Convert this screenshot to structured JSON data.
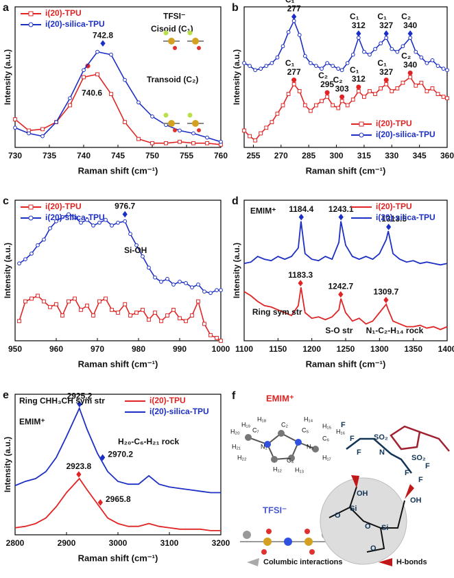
{
  "chart_data": [
    {
      "type": "line",
      "label": "a",
      "xlabel": "Raman shift (cm⁻¹)",
      "ylabel": "Intensity (a.u.)",
      "x": [
        730,
        732,
        734,
        736,
        738,
        740,
        742,
        744,
        746,
        748,
        750,
        752,
        754,
        756,
        758,
        760
      ],
      "xlim": [
        730,
        760
      ],
      "xticks": [
        730,
        735,
        740,
        745,
        750,
        755,
        760
      ],
      "ylim": [
        0,
        1
      ],
      "legend": "upper left",
      "markers": true,
      "series": [
        {
          "name": "i(20)-TPU",
          "color": "#e02424",
          "marker": "square",
          "values": [
            0.2,
            0.12,
            0.13,
            0.18,
            0.3,
            0.5,
            0.52,
            0.38,
            0.18,
            0.06,
            0.03,
            0.03,
            0.04,
            0.03,
            0.03,
            0.02
          ],
          "peaks": [
            {
              "x": 740.6,
              "y": 0.58
            }
          ]
        },
        {
          "name": "i(20)-silica-TPU",
          "color": "#1c2fc4",
          "marker": "circle",
          "values": [
            0.14,
            0.1,
            0.08,
            0.18,
            0.35,
            0.55,
            0.68,
            0.66,
            0.48,
            0.32,
            0.22,
            0.16,
            0.12,
            0.1,
            0.07,
            0.04
          ],
          "peaks": [
            {
              "x": 742.8,
              "y": 0.74
            }
          ]
        }
      ],
      "annotations": [
        "TFSI⁻",
        "Cisoid (C₁)",
        "Transoid (C₂)"
      ]
    },
    {
      "type": "line",
      "label": "b",
      "xlabel": "Raman shift (cm⁻¹)",
      "ylabel": "Intensity (a.u.)",
      "x": [
        250,
        253,
        256,
        259,
        262,
        265,
        268,
        271,
        274,
        277,
        280,
        283,
        286,
        289,
        292,
        295,
        298,
        301,
        303,
        306,
        309,
        312,
        315,
        318,
        321,
        324,
        327,
        330,
        333,
        336,
        340,
        343,
        346,
        349,
        352,
        355,
        358,
        360
      ],
      "xlim": [
        250,
        360
      ],
      "xticks": [
        255,
        270,
        285,
        300,
        315,
        330,
        345,
        360
      ],
      "ylim": [
        0,
        1
      ],
      "legend": "lower right",
      "markers": true,
      "series": [
        {
          "name": "i(20)-TPU",
          "color": "#e02424",
          "marker": "square",
          "values": [
            0.12,
            0.08,
            0.05,
            0.1,
            0.14,
            0.18,
            0.24,
            0.3,
            0.38,
            0.45,
            0.4,
            0.3,
            0.26,
            0.3,
            0.33,
            0.36,
            0.3,
            0.28,
            0.33,
            0.3,
            0.34,
            0.4,
            0.36,
            0.4,
            0.38,
            0.42,
            0.45,
            0.4,
            0.42,
            0.46,
            0.5,
            0.44,
            0.46,
            0.4,
            0.42,
            0.38,
            0.36,
            0.35
          ],
          "peaks": [
            {
              "x": 277,
              "y": 0.48,
              "tag": "C₁"
            },
            {
              "x": 295,
              "y": 0.39,
              "tag": "C₂"
            },
            {
              "x": 303,
              "y": 0.36,
              "tag": "C₂"
            },
            {
              "x": 312,
              "y": 0.43,
              "tag": "C₁"
            },
            {
              "x": 327,
              "y": 0.48,
              "tag": "C₁"
            },
            {
              "x": 340,
              "y": 0.53,
              "tag": "C₂"
            }
          ]
        },
        {
          "name": "i(20)-silica-TPU",
          "color": "#1c2fc4",
          "marker": "circle",
          "values": [
            0.6,
            0.58,
            0.55,
            0.56,
            0.58,
            0.6,
            0.64,
            0.72,
            0.82,
            0.9,
            0.8,
            0.65,
            0.6,
            0.58,
            0.56,
            0.6,
            0.58,
            0.56,
            0.55,
            0.6,
            0.66,
            0.78,
            0.68,
            0.66,
            0.7,
            0.74,
            0.78,
            0.7,
            0.68,
            0.72,
            0.78,
            0.68,
            0.64,
            0.6,
            0.62,
            0.58,
            0.56,
            0.55
          ],
          "peaks": [
            {
              "x": 277,
              "y": 0.93,
              "tag": "C₁"
            },
            {
              "x": 312,
              "y": 0.81,
              "tag": "C₁"
            },
            {
              "x": 327,
              "y": 0.81,
              "tag": "C₁"
            },
            {
              "x": 340,
              "y": 0.81,
              "tag": "C₂"
            }
          ]
        }
      ]
    },
    {
      "type": "line",
      "label": "c",
      "xlabel": "Raman shift (cm⁻¹)",
      "ylabel": "Intensity (a.u.)",
      "x": [
        951,
        952.5,
        954,
        955.5,
        957,
        958.5,
        960,
        961.5,
        963,
        964.5,
        966,
        967.5,
        969,
        970.5,
        972,
        973.5,
        975,
        976.7,
        978,
        979.5,
        981,
        982.5,
        984,
        985.5,
        987,
        988.5,
        990,
        991.5,
        993,
        994.5,
        996,
        997.5,
        999,
        1000
      ],
      "xlim": [
        950,
        1000
      ],
      "xticks": [
        950,
        960,
        970,
        980,
        990,
        1000
      ],
      "ylim": [
        0,
        1
      ],
      "legend": "upper left",
      "markers": true,
      "series": [
        {
          "name": "i(20)-TPU",
          "color": "#e02424",
          "marker": "square",
          "values": [
            0.14,
            0.28,
            0.3,
            0.32,
            0.28,
            0.24,
            0.26,
            0.18,
            0.28,
            0.3,
            0.22,
            0.25,
            0.18,
            0.28,
            0.3,
            0.22,
            0.2,
            0.26,
            0.18,
            0.2,
            0.22,
            0.15,
            0.2,
            0.14,
            0.18,
            0.22,
            0.16,
            0.14,
            0.18,
            0.28,
            0.12,
            0.04,
            0.02,
            0.0
          ],
          "peaks": []
        },
        {
          "name": "i(20)-silica-TPU",
          "color": "#1c2fc4",
          "marker": "circle",
          "values": [
            0.55,
            0.58,
            0.62,
            0.68,
            0.72,
            0.8,
            0.85,
            0.88,
            0.9,
            0.88,
            0.84,
            0.86,
            0.82,
            0.84,
            0.86,
            0.82,
            0.84,
            0.85,
            0.76,
            0.68,
            0.6,
            0.52,
            0.45,
            0.42,
            0.44,
            0.4,
            0.42,
            0.41,
            0.38,
            0.4,
            0.35,
            0.34,
            0.36,
            0.36
          ],
          "peaks": [
            {
              "x": 976.7,
              "y": 0.9
            }
          ]
        }
      ],
      "annotations": [
        "Si-OH"
      ]
    },
    {
      "type": "line",
      "label": "d",
      "xlabel": "Raman shift (cm⁻¹)",
      "ylabel": "Intensity (a.u.)",
      "x": [
        1100,
        1110,
        1120,
        1130,
        1140,
        1150,
        1160,
        1170,
        1180,
        1184,
        1190,
        1200,
        1210,
        1220,
        1230,
        1240,
        1243,
        1250,
        1260,
        1270,
        1280,
        1290,
        1300,
        1310,
        1313,
        1320,
        1330,
        1340,
        1350,
        1360,
        1370,
        1380,
        1390,
        1400
      ],
      "xlim": [
        1100,
        1400
      ],
      "xticks": [
        1100,
        1150,
        1200,
        1250,
        1300,
        1350,
        1400
      ],
      "ylim": [
        0,
        1
      ],
      "legend": "upper right",
      "markers": false,
      "series": [
        {
          "name": "i(20)-TPU",
          "color": "#e02424",
          "marker": "circle",
          "values": [
            0.35,
            0.32,
            0.28,
            0.25,
            0.24,
            0.22,
            0.2,
            0.18,
            0.25,
            0.38,
            0.2,
            0.16,
            0.17,
            0.15,
            0.17,
            0.22,
            0.3,
            0.2,
            0.14,
            0.16,
            0.12,
            0.14,
            0.2,
            0.26,
            0.22,
            0.14,
            0.12,
            0.1,
            0.1,
            0.11,
            0.09,
            0.1,
            0.08,
            0.1
          ],
          "peaks": [
            {
              "x": 1183.3,
              "y": 0.41
            },
            {
              "x": 1242.7,
              "y": 0.33
            },
            {
              "x": 1309.7,
              "y": 0.29
            }
          ]
        },
        {
          "name": "i(20)-silica-TPU",
          "color": "#1c2fc4",
          "marker": "diamond",
          "values": [
            0.55,
            0.56,
            0.6,
            0.58,
            0.57,
            0.6,
            0.58,
            0.6,
            0.66,
            0.85,
            0.62,
            0.58,
            0.57,
            0.6,
            0.58,
            0.7,
            0.85,
            0.68,
            0.6,
            0.58,
            0.6,
            0.58,
            0.62,
            0.72,
            0.78,
            0.62,
            0.58,
            0.56,
            0.57,
            0.55,
            0.56,
            0.55,
            0.54,
            0.55
          ],
          "peaks": [
            {
              "x": 1184.4,
              "y": 0.88
            },
            {
              "x": 1243.1,
              "y": 0.88
            },
            {
              "x": 1313.5,
              "y": 0.81
            }
          ]
        }
      ],
      "annotations": [
        "EMIM⁺",
        "Ring sym str",
        "S-O str",
        "N₁-C₂-H₁₄ rock"
      ]
    },
    {
      "type": "line",
      "label": "e",
      "xlabel": "Raman shift (cm⁻¹)",
      "ylabel": "Intensity (a.u.)",
      "x": [
        2800,
        2820,
        2840,
        2860,
        2880,
        2900,
        2925,
        2940,
        2960,
        2980,
        3000,
        3020,
        3040,
        3060,
        3080,
        3100,
        3120,
        3140,
        3160,
        3180,
        3200
      ],
      "xlim": [
        2800,
        3200
      ],
      "xticks": [
        2800,
        2900,
        3000,
        3100,
        3200
      ],
      "ylim": [
        0,
        1
      ],
      "legend": "upper right",
      "markers": false,
      "series": [
        {
          "name": "i(20)-TPU",
          "color": "#e02424",
          "marker": "circle",
          "values": [
            0.05,
            0.06,
            0.08,
            0.12,
            0.2,
            0.3,
            0.4,
            0.32,
            0.22,
            0.12,
            0.08,
            0.06,
            0.06,
            0.08,
            0.06,
            0.05,
            0.04,
            0.04,
            0.04,
            0.03,
            0.03
          ],
          "peaks": [
            {
              "x": 2923.8,
              "y": 0.43
            },
            {
              "x": 2965.8,
              "y": 0.23
            }
          ]
        },
        {
          "name": "i(20)-silica-TPU",
          "color": "#1c2fc4",
          "marker": "diamond",
          "values": [
            0.35,
            0.38,
            0.4,
            0.45,
            0.55,
            0.7,
            0.9,
            0.75,
            0.58,
            0.45,
            0.38,
            0.36,
            0.36,
            0.42,
            0.36,
            0.34,
            0.33,
            0.32,
            0.31,
            0.3,
            0.3
          ],
          "peaks": [
            {
              "x": 2925.2,
              "y": 0.93
            },
            {
              "x": 2970.2,
              "y": 0.55
            }
          ]
        }
      ],
      "annotations": [
        "Ring CHH₃CH sym str",
        "EMIM⁺",
        "H₂₀-C₆-H₂₁ rock"
      ]
    }
  ],
  "diagram": {
    "label": "f",
    "cation": "EMIM⁺",
    "anion": "TFSI⁻",
    "atoms": [
      "H₁₈",
      "H₁₉",
      "H₂₀",
      "C₇",
      "N₁",
      "C₂",
      "H₁₄",
      "C₅",
      "N₃",
      "C₆",
      "H₁₅",
      "H₁₆",
      "H₁₇",
      "H₂₁",
      "H₂₂",
      "H₁₂",
      "C₄",
      "H₁₃"
    ],
    "structure": [
      "F",
      "F",
      "F",
      "SO₂",
      "N",
      "SO₂",
      "F",
      "F",
      "F",
      "OH",
      "OH",
      "Si",
      "Si",
      "O",
      "O",
      "O"
    ],
    "legend": [
      "Columbic interactions",
      "H-bonds"
    ]
  }
}
